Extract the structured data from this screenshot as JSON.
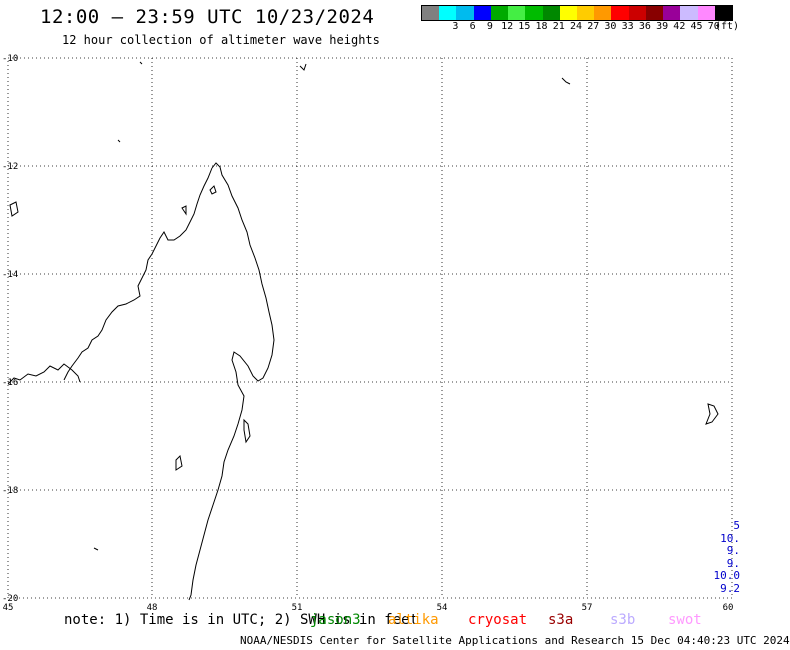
{
  "header": {
    "title": "12:00 – 23:59 UTC 10/23/2024",
    "subtitle": "12 hour collection of altimeter wave heights"
  },
  "colorbar": {
    "unit_label": "(ft)",
    "entries": [
      {
        "label": "",
        "color": "#808080"
      },
      {
        "label": "3",
        "color": "#00ffff"
      },
      {
        "label": "6",
        "color": "#00bbee"
      },
      {
        "label": "9",
        "color": "#0000ff"
      },
      {
        "label": "12",
        "color": "#00aa00"
      },
      {
        "label": "15",
        "color": "#44ee44"
      },
      {
        "label": "18",
        "color": "#00bb00"
      },
      {
        "label": "21",
        "color": "#008800"
      },
      {
        "label": "24",
        "color": "#ffff00"
      },
      {
        "label": "27",
        "color": "#ffcc00"
      },
      {
        "label": "30",
        "color": "#ff9900"
      },
      {
        "label": "33",
        "color": "#ff0000"
      },
      {
        "label": "36",
        "color": "#cc0000"
      },
      {
        "label": "39",
        "color": "#880000"
      },
      {
        "label": "42",
        "color": "#990099"
      },
      {
        "label": "45",
        "color": "#ccbbff"
      },
      {
        "label": "70",
        "color": "#ff88ff"
      },
      {
        "label": "",
        "color": "#000000"
      }
    ]
  },
  "map": {
    "x_ticks": [
      "45",
      "48",
      "51",
      "54",
      "57",
      "60"
    ],
    "y_ticks": [
      "-10",
      "-12",
      "-14",
      "-16",
      "-18",
      "-20"
    ]
  },
  "footer": {
    "note": "note: 1) Time is in UTC; 2) SWH is in feet",
    "satellites": [
      {
        "name": "jason3",
        "color": "#008800"
      },
      {
        "name": "altika",
        "color": "#ff9900"
      },
      {
        "name": "cryosat",
        "color": "#ff0000"
      },
      {
        "name": "s3a",
        "color": "#990000"
      },
      {
        "name": "s3b",
        "color": "#bbaaff"
      },
      {
        "name": "swot",
        "color": "#ff99ff"
      }
    ],
    "credit": "NOAA/NESDIS Center for Satellite Applications and Research   15 Dec 04:40:23 UTC 2024",
    "right_values": [
      "5",
      "10.",
      "9.",
      "9.",
      "10.0",
      "9.2"
    ]
  }
}
